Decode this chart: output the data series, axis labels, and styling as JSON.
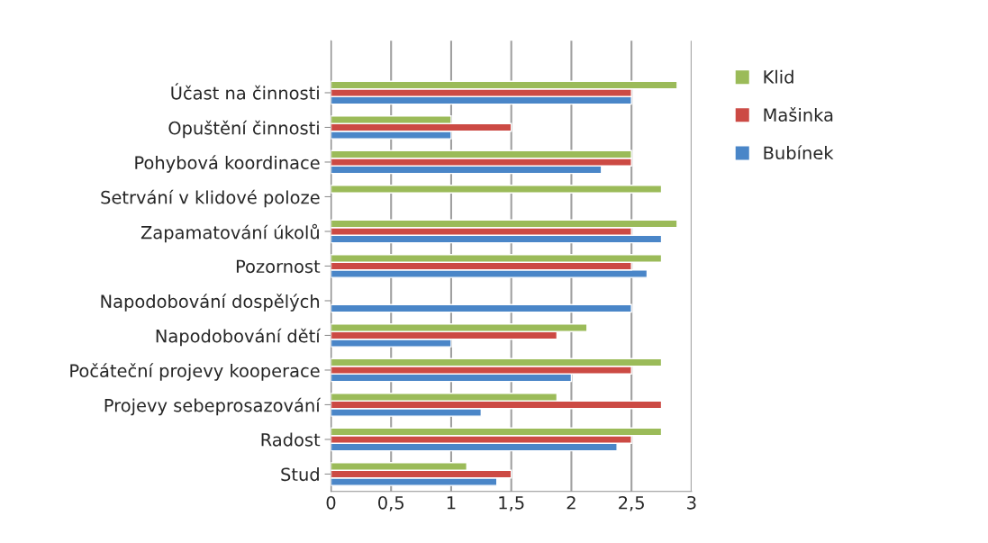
{
  "chart_data": {
    "type": "bar",
    "orientation": "horizontal",
    "categories": [
      "Účast na činnosti",
      "Opuštění činnosti",
      "Pohybová koordinace",
      "Setrvání v klidové poloze",
      "Zapamatování úkolů",
      "Pozornost",
      "Napodobování dospělých",
      "Napodobování dětí",
      "Počáteční projevy kooperace",
      "Projevy sebeprosazování",
      "Radost",
      "Stud"
    ],
    "series": [
      {
        "name": "Bubínek",
        "color": "#4a86c8",
        "values": [
          2.5,
          1,
          2.25,
          null,
          2.75,
          2.63,
          2.5,
          1,
          2,
          1.25,
          2.38,
          1.38
        ]
      },
      {
        "name": "Mašinka",
        "color": "#cc4a44",
        "values": [
          2.5,
          1.5,
          2.5,
          null,
          2.5,
          2.5,
          null,
          1.88,
          2.5,
          2.75,
          2.5,
          1.5
        ]
      },
      {
        "name": "Klid",
        "color": "#9bbb59",
        "values": [
          2.88,
          1,
          2.5,
          2.75,
          2.88,
          2.75,
          null,
          2.13,
          2.75,
          1.88,
          2.75,
          1.13
        ]
      }
    ],
    "xlim": [
      0,
      3
    ],
    "xticks": [
      0,
      {
        "value": 0.5,
        "label": "0,5"
      },
      1,
      {
        "value": 1.5,
        "label": "1,5"
      },
      2,
      {
        "value": 2.5,
        "label": "2,5"
      },
      3
    ],
    "grid": "x",
    "legend": "right"
  }
}
